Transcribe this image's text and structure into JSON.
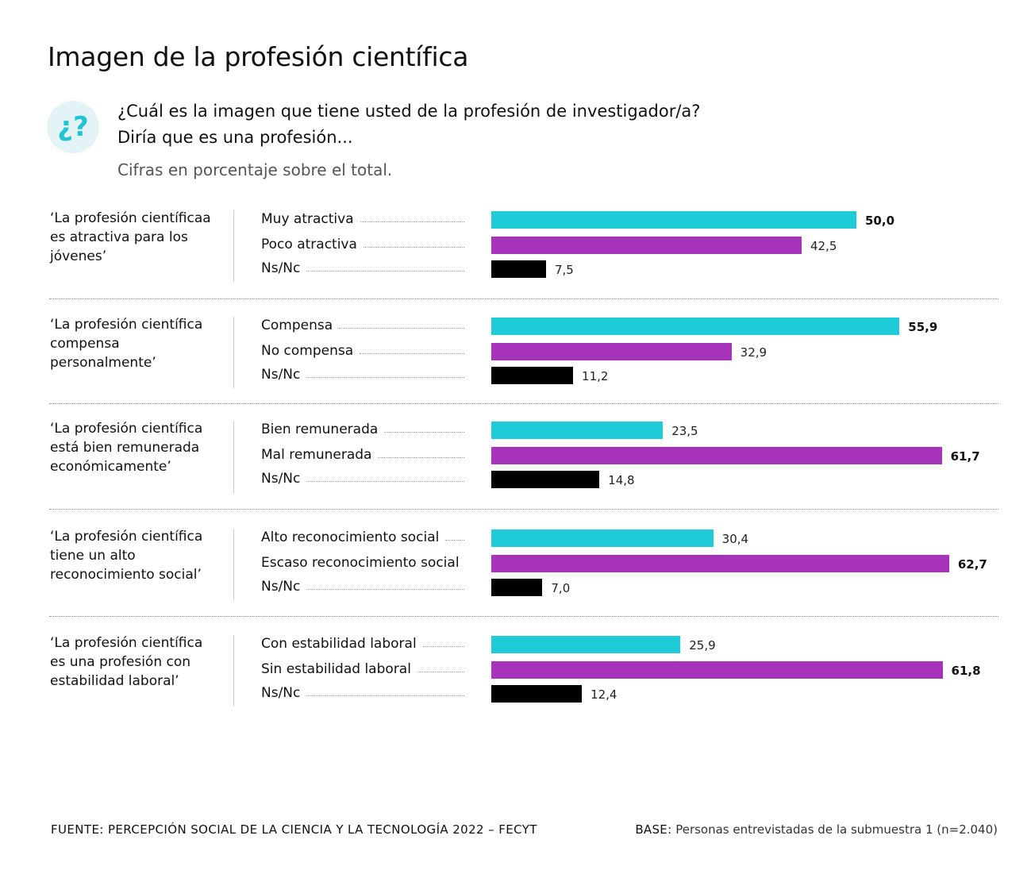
{
  "title": "Imagen de la profesión científica",
  "icon": {
    "name": "question-icon",
    "glyph": "¿?",
    "color": "#22c3d3",
    "bg": "#e4f4f6"
  },
  "question_line1": "¿Cuál es la imagen que tiene usted de la profesión de investigador/a?",
  "question_line2": "Diría que es una profesión...",
  "subtitle": "Cifras en porcentaje sobre el total.",
  "colors": {
    "positive": "#1ecbd6",
    "negative": "#a633b9",
    "nsnc": "#000000"
  },
  "chart_data": {
    "type": "bar",
    "orientation": "horizontal",
    "unit": "%",
    "xlim": [
      0,
      70
    ],
    "grid": false,
    "groups": [
      {
        "label": "‘La profesión científicaa es atractiva para los jóvenes’",
        "rows": [
          {
            "label": "Muy atractiva",
            "value": 50.0,
            "display": "50,0",
            "color": "#1ecbd6",
            "bold": true
          },
          {
            "label": "Poco atractiva",
            "value": 42.5,
            "display": "42,5",
            "color": "#a633b9",
            "bold": false
          },
          {
            "label": "Ns/Nc",
            "value": 7.5,
            "display": "7,5",
            "color": "#000000",
            "bold": false
          }
        ]
      },
      {
        "label": "‘La profesión científica compensa personalmente’",
        "rows": [
          {
            "label": "Compensa",
            "value": 55.9,
            "display": "55,9",
            "color": "#1ecbd6",
            "bold": true
          },
          {
            "label": "No compensa",
            "value": 32.9,
            "display": "32,9",
            "color": "#a633b9",
            "bold": false
          },
          {
            "label": "Ns/Nc",
            "value": 11.2,
            "display": "11,2",
            "color": "#000000",
            "bold": false
          }
        ]
      },
      {
        "label": "‘La profesión científica está bien remunerada económicamente’",
        "rows": [
          {
            "label": "Bien remunerada",
            "value": 23.5,
            "display": "23,5",
            "color": "#1ecbd6",
            "bold": false
          },
          {
            "label": "Mal remunerada",
            "value": 61.7,
            "display": "61,7",
            "color": "#a633b9",
            "bold": true
          },
          {
            "label": "Ns/Nc",
            "value": 14.8,
            "display": "14,8",
            "color": "#000000",
            "bold": false
          }
        ]
      },
      {
        "label": "‘La profesión científica tiene un alto reconocimiento social’",
        "rows": [
          {
            "label": "Alto reconocimiento social",
            "value": 30.4,
            "display": "30,4",
            "color": "#1ecbd6",
            "bold": false
          },
          {
            "label": "Escaso reconocimiento social",
            "value": 62.7,
            "display": "62,7",
            "color": "#a633b9",
            "bold": true
          },
          {
            "label": "Ns/Nc",
            "value": 7.0,
            "display": "7,0",
            "color": "#000000",
            "bold": false
          }
        ]
      },
      {
        "label": "‘La profesión científica es una profesión con estabilidad laboral’",
        "rows": [
          {
            "label": "Con estabilidad laboral",
            "value": 25.9,
            "display": "25,9",
            "color": "#1ecbd6",
            "bold": false
          },
          {
            "label": "Sin estabilidad laboral",
            "value": 61.8,
            "display": "61,8",
            "color": "#a633b9",
            "bold": true
          },
          {
            "label": "Ns/Nc",
            "value": 12.4,
            "display": "12,4",
            "color": "#000000",
            "bold": false
          }
        ]
      }
    ]
  },
  "footer": {
    "source": "FUENTE: PERCEPCIÓN SOCIAL DE LA CIENCIA Y LA TECNOLOGÍA 2022 – FECYT",
    "base_label": "BASE:",
    "base_text": " Personas entrevistadas de la submuestra 1 (n=2.040)"
  }
}
